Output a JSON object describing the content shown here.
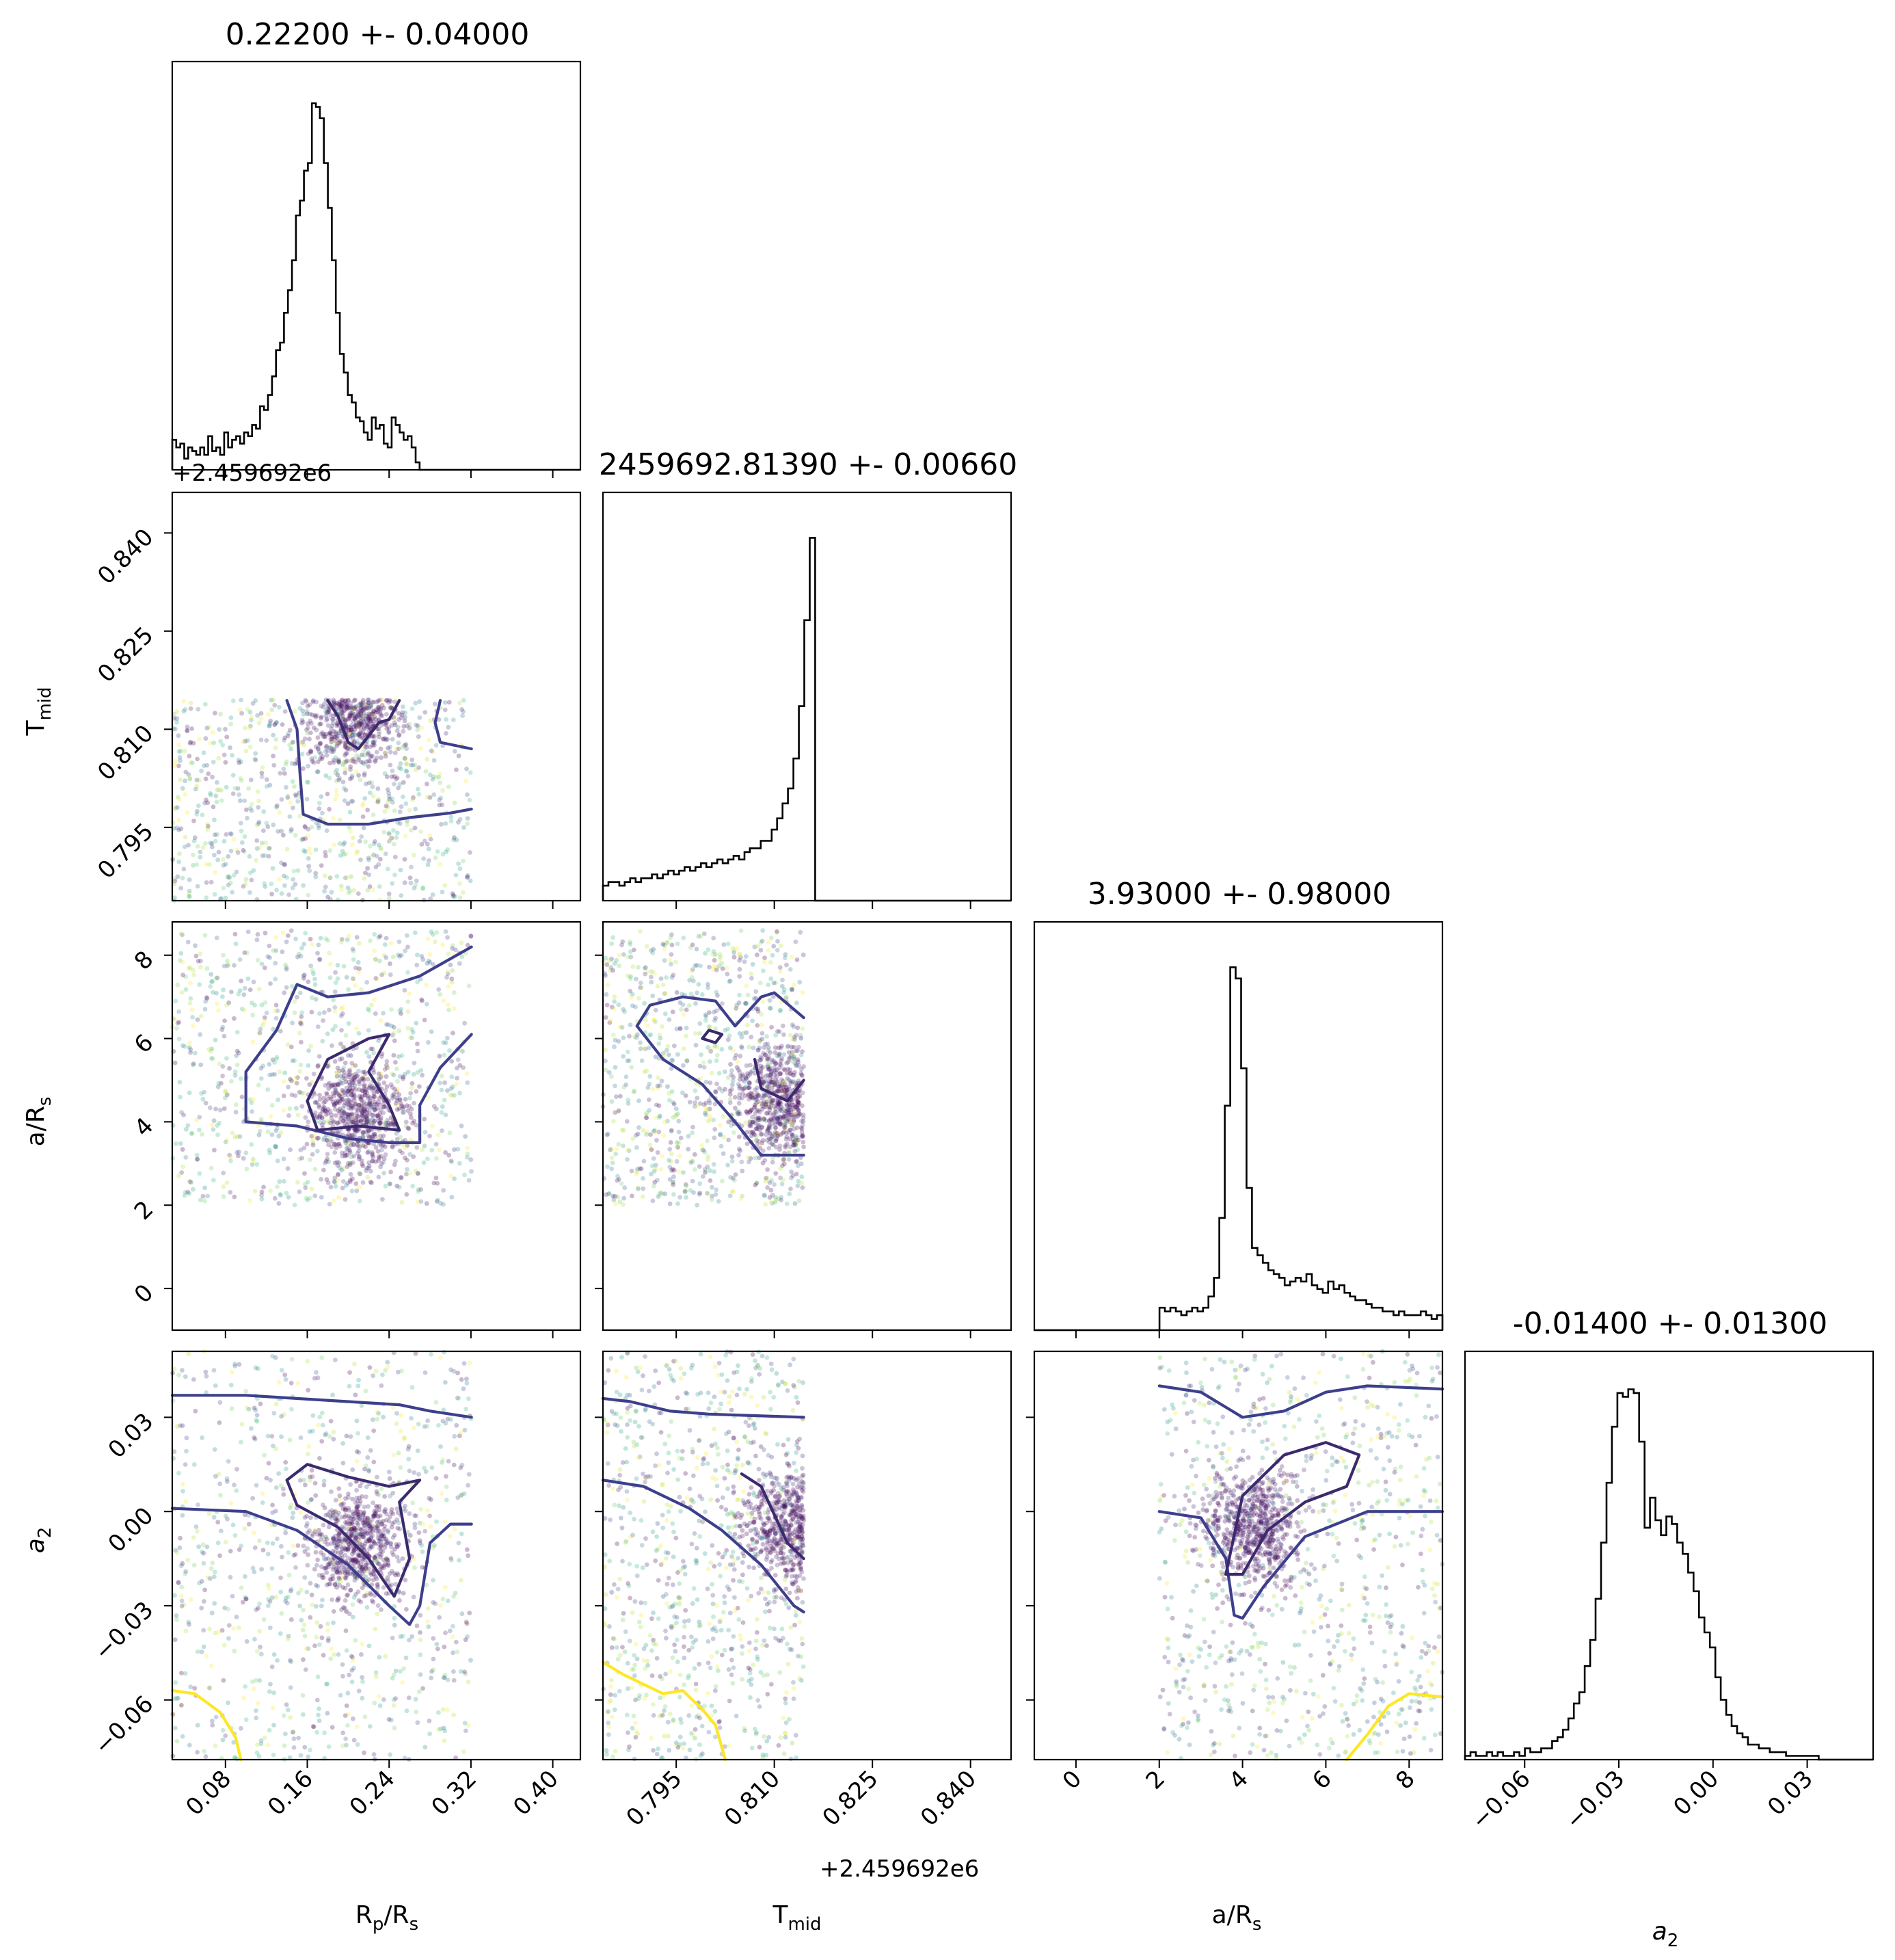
{
  "chart_data": {
    "type": "corner",
    "parameters": [
      {
        "key": "rp",
        "label": "R",
        "label_sub": "p",
        "label_tail": "/R",
        "label_tail_sub": "s"
      },
      {
        "key": "tmid",
        "label": "T",
        "label_sub": "mid",
        "label_tail": "",
        "label_tail_sub": ""
      },
      {
        "key": "ars",
        "label": "a/R",
        "label_sub": "s",
        "label_tail": "",
        "label_tail_sub": ""
      },
      {
        "key": "a2",
        "label": "a",
        "label_sub": "2",
        "label_tail": "",
        "label_tail_sub": ""
      }
    ],
    "titles": [
      "0.22200 +- 0.04000",
      "2459692.81390 +- 0.00660",
      "3.93000 +- 0.98000",
      "-0.01400 +- 0.01300"
    ],
    "ranges": {
      "rp": [
        0.028,
        0.427
      ],
      "tmid": [
        2459692.7838,
        2459692.8462
      ],
      "ars": [
        -1.0,
        8.8
      ],
      "a2": [
        -0.079,
        0.051
      ]
    },
    "ticks": {
      "rp": [
        "0.08",
        "0.16",
        "0.24",
        "0.32",
        "0.40"
      ],
      "tmid": [
        "0.795",
        "0.810",
        "0.825",
        "0.840"
      ],
      "ars": [
        "0",
        "2",
        "4",
        "6",
        "8"
      ],
      "a2": [
        "−0.06",
        "−0.03",
        "0.00",
        "0.03"
      ]
    },
    "offsets": {
      "tmid_x": "+2.459692e6",
      "tmid_y": "+2.459692e6"
    },
    "histograms": {
      "rp": {
        "edges": [
          0.028,
          0.3205
        ],
        "counts": [
          0.08,
          0.06,
          0.07,
          0.03,
          0.06,
          0.05,
          0.04,
          0.06,
          0.04,
          0.09,
          0.05,
          0.06,
          0.04,
          0.1,
          0.06,
          0.08,
          0.09,
          0.07,
          0.1,
          0.09,
          0.12,
          0.11,
          0.17,
          0.16,
          0.2,
          0.25,
          0.32,
          0.34,
          0.42,
          0.48,
          0.56,
          0.68,
          0.72,
          0.8,
          0.82,
          0.98,
          0.97,
          0.94,
          0.82,
          0.7,
          0.56,
          0.42,
          0.31,
          0.26,
          0.2,
          0.18,
          0.14,
          0.13,
          0.1,
          0.08,
          0.14,
          0.11,
          0.12,
          0.07,
          0.06,
          0.14,
          0.12,
          0.1,
          0.08,
          0.09,
          0.06,
          0.02,
          0.0,
          0.0,
          0.0,
          0.0,
          0.0,
          0.0,
          0.0,
          0.0,
          0.0,
          0.0,
          0.0,
          0.0,
          0.0
        ]
      },
      "tmid": {
        "edges": [
          2459692.7838,
          2459692.8462
        ],
        "counts": [
          0.04,
          0.05,
          0.05,
          0.04,
          0.05,
          0.06,
          0.05,
          0.06,
          0.06,
          0.07,
          0.06,
          0.07,
          0.08,
          0.07,
          0.08,
          0.09,
          0.08,
          0.09,
          0.1,
          0.09,
          0.1,
          0.11,
          0.1,
          0.11,
          0.12,
          0.11,
          0.13,
          0.14,
          0.14,
          0.16,
          0.16,
          0.19,
          0.22,
          0.26,
          0.3,
          0.38,
          0.52,
          0.75,
          0.97,
          0.0,
          0.0,
          0.0,
          0.0,
          0.0,
          0.0,
          0.0,
          0.0,
          0.0,
          0.0,
          0.0,
          0.0,
          0.0,
          0.0,
          0.0,
          0.0,
          0.0,
          0.0,
          0.0,
          0.0,
          0.0,
          0.0,
          0.0,
          0.0,
          0.0,
          0.0,
          0.0,
          0.0,
          0.0,
          0.0,
          0.0,
          0.0,
          0.0,
          0.0,
          0.0,
          0.0
        ]
      },
      "ars": {
        "edges": [
          -1.0,
          8.8
        ],
        "counts": [
          0.0,
          0.0,
          0.0,
          0.0,
          0.0,
          0.0,
          0.0,
          0.0,
          0.0,
          0.0,
          0.0,
          0.0,
          0.0,
          0.0,
          0.0,
          0.0,
          0.0,
          0.0,
          0.0,
          0.0,
          0.0,
          0.0,
          0.0,
          0.06,
          0.05,
          0.06,
          0.05,
          0.04,
          0.05,
          0.06,
          0.05,
          0.06,
          0.09,
          0.14,
          0.3,
          0.6,
          0.97,
          0.94,
          0.7,
          0.38,
          0.22,
          0.2,
          0.18,
          0.16,
          0.15,
          0.14,
          0.12,
          0.13,
          0.14,
          0.13,
          0.15,
          0.12,
          0.11,
          0.1,
          0.13,
          0.11,
          0.12,
          0.1,
          0.09,
          0.08,
          0.08,
          0.07,
          0.06,
          0.06,
          0.05,
          0.05,
          0.04,
          0.05,
          0.04,
          0.04,
          0.04,
          0.05,
          0.04,
          0.03,
          0.04
        ]
      },
      "a2": {
        "edges": [
          -0.079,
          0.051
        ],
        "counts": [
          0.01,
          0.02,
          0.01,
          0.01,
          0.02,
          0.01,
          0.02,
          0.01,
          0.01,
          0.02,
          0.01,
          0.03,
          0.02,
          0.02,
          0.03,
          0.03,
          0.05,
          0.06,
          0.08,
          0.11,
          0.15,
          0.18,
          0.25,
          0.32,
          0.43,
          0.58,
          0.74,
          0.89,
          0.98,
          0.97,
          0.99,
          0.98,
          0.85,
          0.62,
          0.7,
          0.64,
          0.6,
          0.65,
          0.63,
          0.58,
          0.55,
          0.5,
          0.45,
          0.38,
          0.34,
          0.3,
          0.22,
          0.16,
          0.12,
          0.09,
          0.07,
          0.06,
          0.04,
          0.04,
          0.03,
          0.03,
          0.02,
          0.02,
          0.02,
          0.01,
          0.01,
          0.01,
          0.01,
          0.01,
          0.01,
          0.0,
          0.0,
          0.0,
          0.0,
          0.0,
          0.0,
          0.0,
          0.0,
          0.0,
          0.0
        ]
      }
    },
    "scatter_colormap": "viridis",
    "contour_colors": [
      "#3b2a6e",
      "#3d3f8c",
      "#fde725"
    ],
    "pairs": [
      {
        "x": "rp",
        "y": "tmid",
        "x_range": [
          0.028,
          0.3205
        ],
        "y_range": [
          2459692.7838,
          2459692.8145
        ],
        "core": [
          0.205,
          2459692.812
        ],
        "y_cap": 2459692.8145
      },
      {
        "x": "rp",
        "y": "ars",
        "x_range": [
          0.028,
          0.3205
        ],
        "y_range": [
          2.0,
          8.6
        ],
        "core": [
          0.21,
          4.2
        ]
      },
      {
        "x": "tmid",
        "y": "ars",
        "x_range": [
          2459692.7838,
          2459692.8145
        ],
        "y_range": [
          2.0,
          8.6
        ],
        "core": [
          2459692.811,
          4.5
        ]
      },
      {
        "x": "rp",
        "y": "a2",
        "x_range": [
          0.028,
          0.3205
        ],
        "y_range": [
          -0.079,
          0.051
        ],
        "core": [
          0.21,
          -0.01
        ]
      },
      {
        "x": "tmid",
        "y": "a2",
        "x_range": [
          2459692.7838,
          2459692.8145
        ],
        "y_range": [
          -0.079,
          0.051
        ],
        "core": [
          2459692.8125,
          -0.005
        ]
      },
      {
        "x": "ars",
        "y": "a2",
        "x_range": [
          2.0,
          8.8
        ],
        "y_range": [
          -0.079,
          0.051
        ],
        "core": [
          4.2,
          -0.005
        ]
      }
    ]
  }
}
